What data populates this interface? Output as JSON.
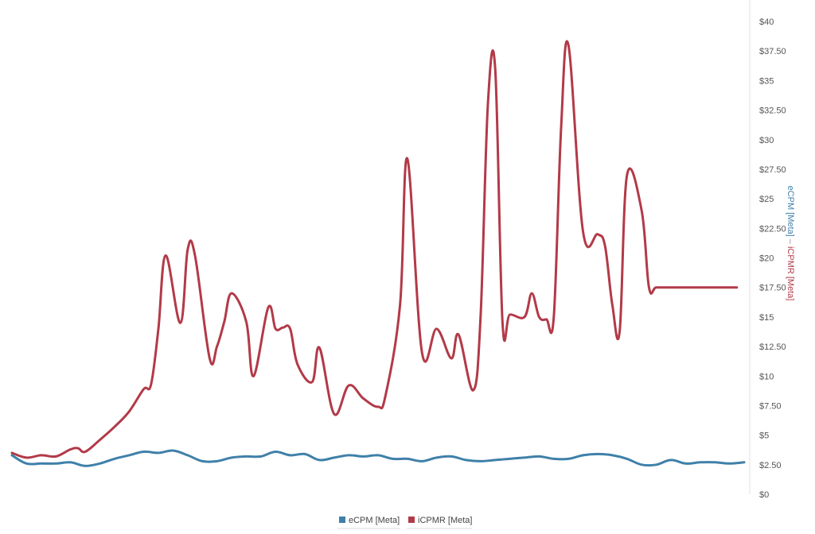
{
  "chart_data": {
    "type": "line",
    "title": "",
    "xlabel": "",
    "ylabel": {
      "parts": [
        "eCPM [Meta]",
        " – ",
        "iCPMR [Meta]"
      ],
      "colors": [
        "#3f80a9",
        "#888888",
        "#b23a48"
      ]
    },
    "ylim": [
      0,
      40
    ],
    "yticks": [
      {
        "value": 0,
        "label": "$0"
      },
      {
        "value": 2.5,
        "label": "$2.50"
      },
      {
        "value": 5,
        "label": "$5"
      },
      {
        "value": 7.5,
        "label": "$7.50"
      },
      {
        "value": 10,
        "label": "$10"
      },
      {
        "value": 12.5,
        "label": "$12.50"
      },
      {
        "value": 15,
        "label": "$15"
      },
      {
        "value": 17.5,
        "label": "$17.50"
      },
      {
        "value": 20,
        "label": "$20"
      },
      {
        "value": 22.5,
        "label": "$22.50"
      },
      {
        "value": 25,
        "label": "$25"
      },
      {
        "value": 27.5,
        "label": "$27.50"
      },
      {
        "value": 30,
        "label": "$30"
      },
      {
        "value": 32.5,
        "label": "$32.50"
      },
      {
        "value": 35,
        "label": "$35"
      },
      {
        "value": 37.5,
        "label": "$37.50"
      },
      {
        "value": 40,
        "label": "$40"
      }
    ],
    "axis_side": "right",
    "grid": false,
    "legend": {
      "position": "bottom-center"
    },
    "series": [
      {
        "name": "eCPM [Meta]",
        "color": "#3f80a9",
        "x": [
          0,
          2,
          4,
          6,
          8,
          10,
          12,
          14,
          16,
          18,
          20,
          22,
          24,
          26,
          28,
          30,
          32,
          34,
          36,
          38,
          40,
          42,
          44,
          46,
          48,
          50,
          52,
          54,
          56,
          58,
          60,
          62,
          64,
          66,
          68,
          70,
          72,
          74,
          76,
          78,
          80,
          82,
          84,
          86,
          88,
          90,
          92,
          94,
          96,
          98,
          100
        ],
        "values": [
          3.3,
          2.6,
          2.6,
          2.6,
          2.7,
          2.4,
          2.6,
          3.0,
          3.3,
          3.6,
          3.5,
          3.7,
          3.3,
          2.8,
          2.8,
          3.1,
          3.2,
          3.2,
          3.6,
          3.3,
          3.4,
          2.9,
          3.1,
          3.3,
          3.2,
          3.3,
          3.0,
          3.0,
          2.8,
          3.1,
          3.2,
          2.9,
          2.8,
          2.9,
          3.0,
          3.1,
          3.2,
          3.0,
          3.0,
          3.3,
          3.4,
          3.3,
          3.0,
          2.5,
          2.5,
          2.9,
          2.6,
          2.7,
          2.7,
          2.6,
          2.7
        ]
      },
      {
        "name": "iCPMR [Meta]",
        "color": "#b23a48",
        "x": [
          0,
          2,
          4,
          6,
          8,
          9,
          10,
          12,
          14,
          16,
          18,
          19,
          20,
          21,
          23,
          24,
          25,
          27,
          28,
          29,
          30,
          32,
          33,
          35,
          36,
          37,
          38,
          39,
          41,
          42,
          44,
          46,
          48,
          50,
          51,
          53,
          54,
          56,
          58,
          60,
          61,
          63,
          64,
          65,
          66,
          67,
          68,
          70,
          71,
          72,
          73,
          74,
          75,
          76,
          78,
          80,
          81,
          82,
          83,
          84,
          86,
          87,
          88,
          90,
          91,
          92,
          94,
          95,
          96,
          97,
          98,
          99,
          100
        ],
        "values": [
          3.5,
          3.1,
          3.3,
          3.2,
          3.8,
          3.9,
          3.6,
          4.6,
          5.7,
          7.0,
          8.9,
          9.3,
          14.0,
          20.2,
          14.5,
          20.7,
          20.2,
          11.5,
          12.5,
          14.6,
          17.0,
          14.6,
          10.0,
          15.8,
          14.0,
          14.1,
          14.0,
          11.0,
          9.5,
          12.4,
          6.8,
          9.2,
          8.1,
          7.4,
          8.3,
          16.0,
          28.4,
          12.0,
          14.0,
          11.5,
          13.5,
          8.8,
          15.0,
          33.0,
          36.0,
          14.5,
          15.2,
          15.0,
          17.0,
          15.0,
          14.8,
          15.0,
          31.0,
          38.0,
          22.2,
          22.0,
          21.0,
          16.0,
          13.8,
          27.0,
          24.0,
          17.5,
          17.5,
          17.5,
          17.5,
          17.5,
          17.5,
          17.5,
          17.5,
          17.5,
          17.5,
          17.5,
          17.5
        ]
      }
    ]
  }
}
